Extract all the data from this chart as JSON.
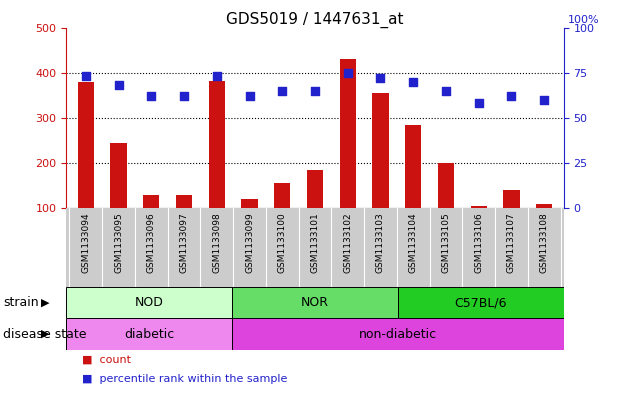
{
  "title": "GDS5019 / 1447631_at",
  "samples": [
    "GSM1133094",
    "GSM1133095",
    "GSM1133096",
    "GSM1133097",
    "GSM1133098",
    "GSM1133099",
    "GSM1133100",
    "GSM1133101",
    "GSM1133102",
    "GSM1133103",
    "GSM1133104",
    "GSM1133105",
    "GSM1133106",
    "GSM1133107",
    "GSM1133108"
  ],
  "counts": [
    380,
    245,
    130,
    130,
    382,
    120,
    155,
    185,
    430,
    355,
    285,
    200,
    105,
    140,
    110
  ],
  "percentile_ranks": [
    73,
    68,
    62,
    62,
    73,
    62,
    65,
    65,
    75,
    72,
    70,
    65,
    58,
    62,
    60
  ],
  "ylim_left": [
    100,
    500
  ],
  "ylim_right": [
    0,
    100
  ],
  "yticks_left": [
    100,
    200,
    300,
    400,
    500
  ],
  "yticks_right": [
    0,
    25,
    50,
    75,
    100
  ],
  "bar_color": "#cc1111",
  "dot_color": "#2222cc",
  "left_axis_color": "#cc1111",
  "right_axis_color": "#2222cc",
  "strain_groups": [
    {
      "label": "NOD",
      "start": 0,
      "end": 5,
      "color": "#ccffcc"
    },
    {
      "label": "NOR",
      "start": 5,
      "end": 10,
      "color": "#66dd66"
    },
    {
      "label": "C57BL/6",
      "start": 10,
      "end": 15,
      "color": "#22cc22"
    }
  ],
  "disease_groups": [
    {
      "label": "diabetic",
      "start": 0,
      "end": 5,
      "color": "#ee88ee"
    },
    {
      "label": "non-diabetic",
      "start": 5,
      "end": 15,
      "color": "#dd44dd"
    }
  ],
  "legend_items": [
    {
      "label": "count",
      "color": "#cc1111"
    },
    {
      "label": "percentile rank within the sample",
      "color": "#2222cc"
    }
  ],
  "xtick_bg_color": "#cccccc",
  "fig_width": 6.3,
  "fig_height": 3.93,
  "dpi": 100
}
